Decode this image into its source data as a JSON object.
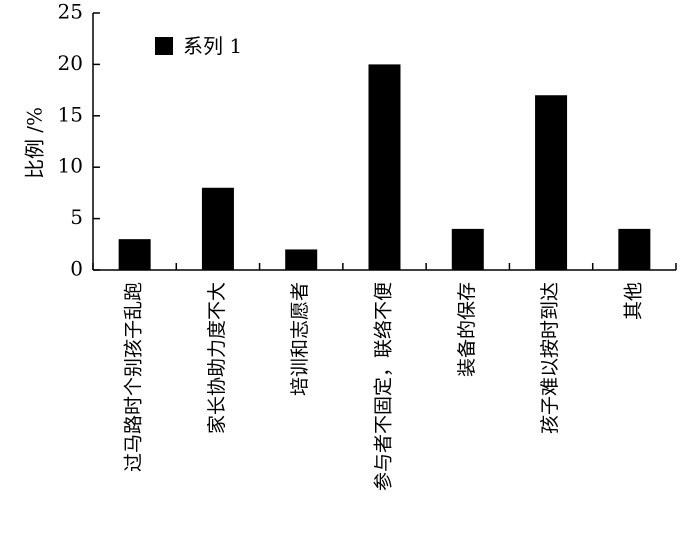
{
  "chart_data": {
    "type": "bar",
    "categories": [
      "过马路时个别孩子乱跑",
      "家长协助力度不大",
      "培训和志愿者",
      "参与者不固定，联络不便",
      "装备的保存",
      "孩子难以按时到达",
      "其他"
    ],
    "series": [
      {
        "name": "系列 1",
        "values": [
          3,
          8,
          2,
          20,
          4,
          17,
          4
        ]
      }
    ],
    "ylabel": "比例 /%",
    "xlabel": "",
    "ylim": [
      0,
      25
    ],
    "yticks": [
      0,
      5,
      10,
      15,
      20,
      25
    ],
    "legend_position": "top-left",
    "grid": false,
    "colors": {
      "bar": "#000000",
      "axis": "#000000"
    }
  }
}
